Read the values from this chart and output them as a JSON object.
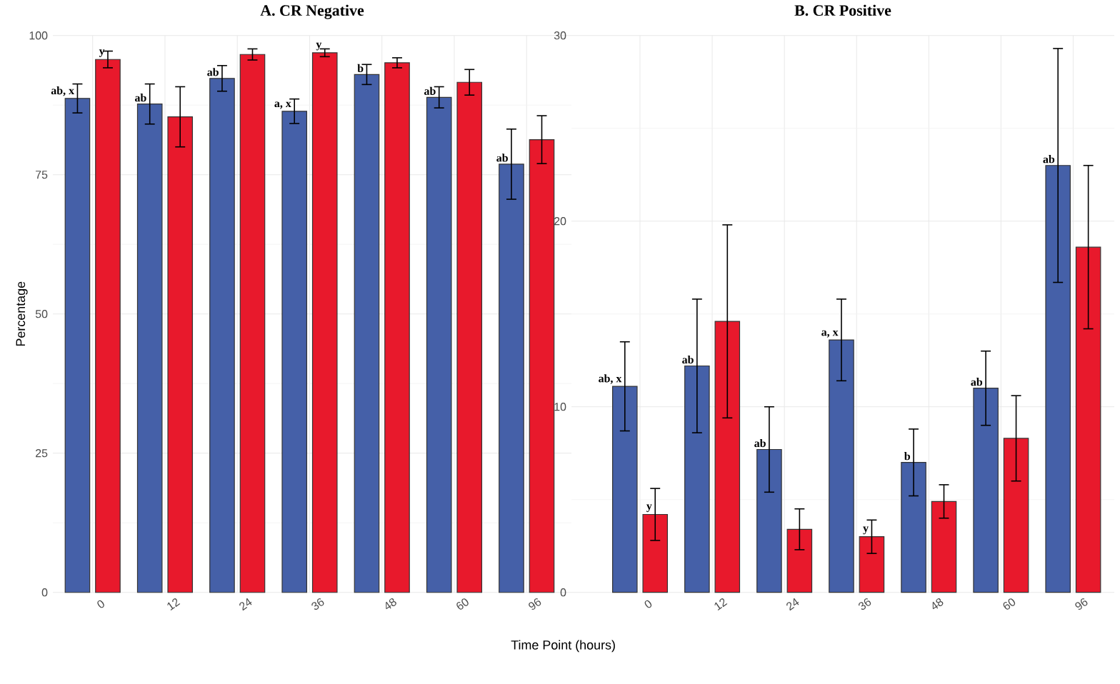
{
  "chart_data": [
    {
      "type": "bar",
      "title": "A. CR Negative",
      "ylabel": "Percentage",
      "categories": [
        "0",
        "12",
        "24",
        "36",
        "48",
        "60",
        "96"
      ],
      "ylim": [
        0,
        100
      ],
      "yticks": [
        0,
        25,
        50,
        75,
        100
      ],
      "grid": true,
      "series": [
        {
          "color": "#4560a8",
          "values": [
            88.7,
            87.7,
            92.3,
            86.4,
            93.0,
            88.9,
            76.9
          ],
          "errors": [
            2.6,
            3.6,
            2.3,
            2.2,
            1.8,
            1.9,
            6.3
          ],
          "value_labels": [
            "ab, x",
            "ab",
            "ab",
            "a, x",
            "b",
            "ab",
            "ab"
          ]
        },
        {
          "color": "#e8192c",
          "values": [
            95.7,
            85.4,
            96.6,
            96.9,
            95.1,
            91.6,
            81.3
          ],
          "errors": [
            1.5,
            5.4,
            1.0,
            0.7,
            0.9,
            2.3,
            4.3
          ],
          "value_labels": [
            "y",
            null,
            null,
            "y",
            null,
            null,
            null
          ]
        }
      ]
    },
    {
      "type": "bar",
      "title": "B. CR Positive",
      "xlabel": "Time Point (hours)",
      "categories": [
        "0",
        "12",
        "24",
        "36",
        "48",
        "60",
        "96"
      ],
      "ylim": [
        0,
        30
      ],
      "yticks": [
        0,
        10,
        20,
        30
      ],
      "grid": true,
      "series": [
        {
          "color": "#4560a8",
          "values": [
            11.1,
            12.2,
            7.7,
            13.6,
            7.0,
            11.0,
            23.0
          ],
          "errors": [
            2.4,
            3.6,
            2.3,
            2.2,
            1.8,
            2.0,
            6.3
          ],
          "value_labels": [
            "ab, x",
            "ab",
            "ab",
            "a, x",
            "b",
            "ab",
            "ab"
          ]
        },
        {
          "color": "#e8192c",
          "values": [
            4.2,
            14.6,
            3.4,
            3.0,
            4.9,
            8.3,
            18.6
          ],
          "errors": [
            1.4,
            5.2,
            1.1,
            0.9,
            0.9,
            2.3,
            4.4
          ],
          "value_labels": [
            "y",
            null,
            null,
            "y",
            null,
            null,
            null
          ]
        }
      ]
    }
  ]
}
